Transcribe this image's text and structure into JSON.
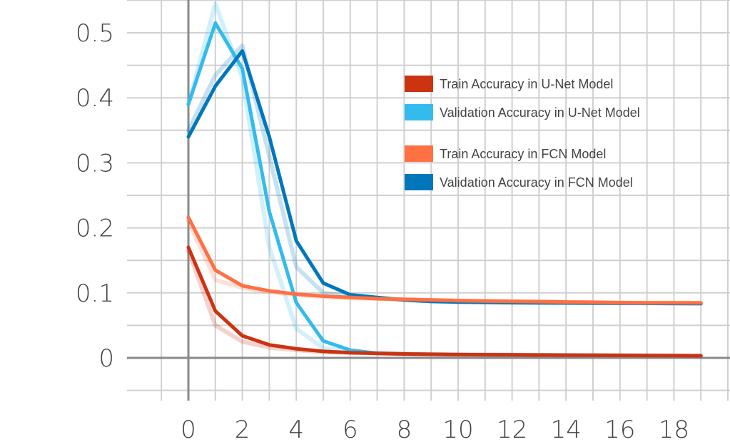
{
  "chart_data": {
    "type": "line",
    "title": "",
    "xlabel": "",
    "ylabel": "",
    "xlim": [
      -2,
      20
    ],
    "ylim": [
      -0.05,
      0.55
    ],
    "x_ticks": [
      0,
      2,
      4,
      6,
      8,
      10,
      12,
      14,
      16,
      18
    ],
    "x_tick_labels": [
      "0",
      "2",
      "4",
      "6",
      "8",
      "10",
      "12",
      "14",
      "16",
      "18"
    ],
    "y_ticks": [
      0,
      0.1,
      0.2,
      0.3,
      0.4,
      0.5
    ],
    "y_tick_labels": [
      "0",
      "0.1",
      "0.2",
      "0.3",
      "0.4",
      "0.5"
    ],
    "grid": true,
    "legend_position": "upper-right",
    "x": [
      0,
      1,
      2,
      3,
      4,
      5,
      6,
      7,
      8,
      9,
      10,
      11,
      12,
      13,
      14,
      15,
      16,
      17,
      18,
      19
    ],
    "series": [
      {
        "name": "Train Accuracy in U-Net Model",
        "color": "#cc3311",
        "values": [
          0.17,
          0.072,
          0.034,
          0.02,
          0.014,
          0.01,
          0.008,
          0.007,
          0.006,
          0.0055,
          0.005,
          0.0048,
          0.0046,
          0.0044,
          0.0042,
          0.004,
          0.0038,
          0.0036,
          0.0034,
          0.0032
        ],
        "raw_values": [
          0.165,
          0.05,
          0.025,
          0.016,
          0.012,
          0.009,
          0.008,
          0.007,
          0.006,
          0.0055,
          0.005,
          0.0048,
          0.0046,
          0.0044,
          0.0042,
          0.004,
          0.0038,
          0.0036,
          0.0034,
          0.0032
        ]
      },
      {
        "name": "Validation Accuracy in U-Net Model",
        "color": "#33bbee",
        "values": [
          0.39,
          0.515,
          0.445,
          0.225,
          0.085,
          0.026,
          0.012,
          0.007,
          0.006,
          0.0055,
          0.005,
          0.0048,
          0.0046,
          0.0044,
          0.0042,
          0.004,
          0.0038,
          0.0036,
          0.0034,
          0.0032
        ],
        "raw_values": [
          0.39,
          0.545,
          0.43,
          0.17,
          0.045,
          0.015,
          0.01,
          0.007,
          0.006,
          0.0055,
          0.005,
          0.0048,
          0.0046,
          0.0044,
          0.0042,
          0.004,
          0.0038,
          0.0036,
          0.0034,
          0.0032
        ]
      },
      {
        "name": "Train Accuracy in FCN Model",
        "color": "#ff7043",
        "values": [
          0.216,
          0.135,
          0.111,
          0.103,
          0.098,
          0.095,
          0.093,
          0.091,
          0.09,
          0.089,
          0.088,
          0.0875,
          0.087,
          0.0865,
          0.086,
          0.0855,
          0.085,
          0.0848,
          0.0846,
          0.0845
        ],
        "raw_values": [
          0.21,
          0.12,
          0.108,
          0.101,
          0.097,
          0.094,
          0.092,
          0.091,
          0.09,
          0.089,
          0.088,
          0.0875,
          0.087,
          0.0865,
          0.086,
          0.0855,
          0.085,
          0.0848,
          0.0846,
          0.0845
        ]
      },
      {
        "name": "Validation Accuracy in FCN Model",
        "color": "#0077bb",
        "values": [
          0.34,
          0.418,
          0.472,
          0.34,
          0.18,
          0.115,
          0.097,
          0.093,
          0.089,
          0.087,
          0.086,
          0.0855,
          0.085,
          0.0848,
          0.0845,
          0.0843,
          0.0842,
          0.084,
          0.0838,
          0.0836
        ],
        "raw_values": [
          0.35,
          0.435,
          0.48,
          0.31,
          0.14,
          0.1,
          0.095,
          0.092,
          0.089,
          0.087,
          0.086,
          0.0855,
          0.085,
          0.0848,
          0.0845,
          0.0843,
          0.0842,
          0.084,
          0.0838,
          0.0836
        ]
      }
    ]
  }
}
